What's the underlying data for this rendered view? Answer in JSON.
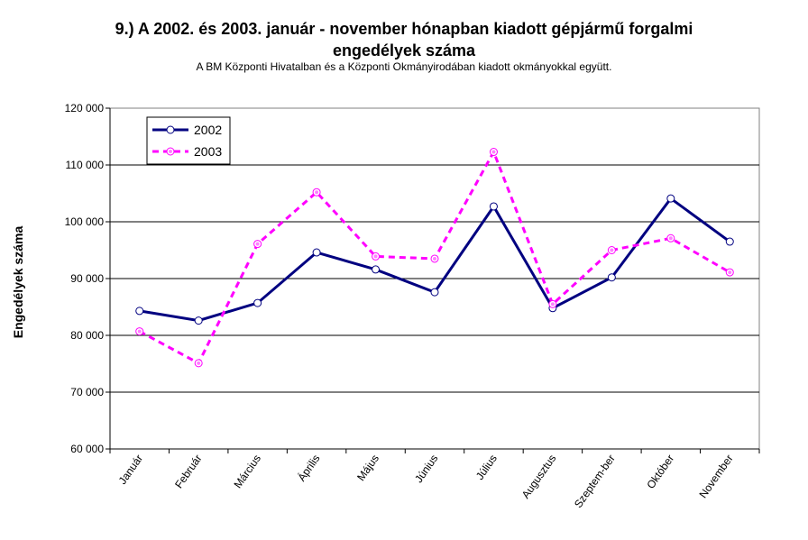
{
  "chart_data": {
    "type": "line",
    "title_line1": "9.) A 2002. és  2003. január - november hónapban kiadott gépjármű forgalmi",
    "title_line2": "engedélyek száma",
    "subtitle": "A BM Központi Hivatalban és a Központi Okmányirodában kiadott okmányokkal együtt.",
    "xlabel": "",
    "ylabel": "Engedélyek száma",
    "ylim": [
      60000,
      120000
    ],
    "yticks": [
      60000,
      70000,
      80000,
      90000,
      100000,
      110000,
      120000
    ],
    "ytick_labels": [
      "60 000",
      "70 000",
      "80 000",
      "90 000",
      "100 000",
      "110 000",
      "120 000"
    ],
    "categories": [
      "Január",
      "Február",
      "Március",
      "Április",
      "Május",
      "Június",
      "Július",
      "Augusztus",
      "Szeptem-ber",
      "Október",
      "November"
    ],
    "grid": true,
    "legend_position": "top-left",
    "series": [
      {
        "name": "2002",
        "color": "#000080",
        "style": "solid",
        "values": [
          84300,
          82600,
          85700,
          94600,
          91600,
          87600,
          102700,
          84800,
          90200,
          104100,
          96500
        ]
      },
      {
        "name": "2003",
        "color": "#ff00ff",
        "style": "dashed",
        "values": [
          80700,
          75100,
          96100,
          105200,
          93900,
          93500,
          112300,
          85500,
          95000,
          97100,
          91100
        ]
      }
    ]
  }
}
